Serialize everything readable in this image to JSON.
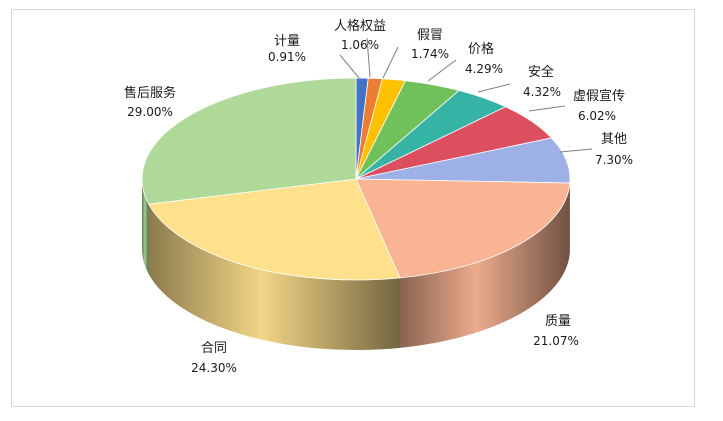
{
  "chart_data": {
    "type": "pie",
    "style": "3d-exploded-none",
    "start_at": "top",
    "direction": "clockwise",
    "slices": [
      {
        "label": "计量",
        "value": 0.91,
        "display": "0.91%",
        "color": "#4472c4"
      },
      {
        "label": "人格权益",
        "value": 1.06,
        "display": "1.06%",
        "color": "#ed7d31"
      },
      {
        "label": "假冒",
        "value": 1.74,
        "display": "1.74%",
        "color": "#ffc000"
      },
      {
        "label": "价格",
        "value": 4.29,
        "display": "4.29%",
        "color": "#70c15a"
      },
      {
        "label": "安全",
        "value": 4.32,
        "display": "4.32%",
        "color": "#35b4a6"
      },
      {
        "label": "虚假宣传",
        "value": 6.02,
        "display": "6.02%",
        "color": "#dc4f5e"
      },
      {
        "label": "其他",
        "value": 7.3,
        "display": "7.30%",
        "color": "#9eb1e6"
      },
      {
        "label": "质量",
        "value": 21.07,
        "display": "21.07%",
        "color": "#f8b493"
      },
      {
        "label": "合同",
        "value": 24.3,
        "display": "24.30%",
        "color": "#ffe08d"
      },
      {
        "label": "售后服务",
        "value": 29.0,
        "display": "29.00%",
        "color": "#aed998"
      }
    ]
  }
}
